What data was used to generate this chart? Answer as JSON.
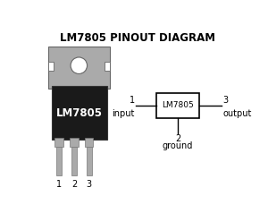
{
  "title": "LM7805 PINOUT DIAGRAM",
  "title_fontsize": 8.5,
  "bg_color": "#ffffff",
  "component_label": "LM7805",
  "pin_labels": [
    "1",
    "2",
    "3"
  ],
  "pin_names_left": "input",
  "pin_name_bottom": "ground",
  "pin_name_right": "output",
  "body_color": "#1a1a1a",
  "tab_color": "#aaaaaa",
  "tab_edge_color": "#666666",
  "leg_color": "#aaaaaa",
  "leg_edge_color": "#777777",
  "box_color": "#ffffff",
  "box_edge_color": "#000000",
  "line_color": "#000000",
  "text_color": "#000000",
  "white": "#ffffff"
}
